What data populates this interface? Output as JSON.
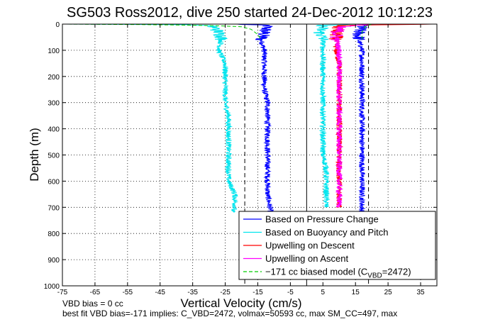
{
  "chart_data": {
    "type": "line",
    "title": "SG503 Ross2012, dive 250 started 24-Dec-2012 10:12:23",
    "xlabel": "Vertical Velocity (cm/s)",
    "ylabel": "Depth (m)",
    "xlim": [
      -75,
      40
    ],
    "ylim": [
      0,
      1000
    ],
    "y_reversed": true,
    "grid": true,
    "x_ticks": [
      "-75",
      "-65",
      "-55",
      "-45",
      "-35",
      "-25",
      "-15",
      "-5",
      "5",
      "15",
      "25",
      "35"
    ],
    "y_ticks": [
      "0",
      "100",
      "200",
      "300",
      "400",
      "500",
      "600",
      "700",
      "800",
      "900",
      "1000"
    ],
    "legend_location": "bottom-right",
    "series": [
      {
        "name": "Based on Pressure Change",
        "color": "#0000ff",
        "segments": [
          {
            "x": [
              -22,
              -12,
              -13,
              -14,
              -13,
              -13,
              -13,
              -13,
              -12,
              -12,
              -12,
              -12,
              -12,
              -12,
              -12,
              -12,
              -11
            ],
            "y": [
              0,
              5,
              30,
              60,
              100,
              150,
              200,
              250,
              300,
              350,
              400,
              450,
              500,
              550,
              600,
              650,
              720
            ]
          },
          {
            "x": [
              20,
              17,
              16,
              16,
              17,
              17,
              17,
              17,
              17,
              17,
              17,
              17,
              17,
              17,
              17,
              17,
              17,
              17
            ],
            "y": [
              0,
              5,
              30,
              60,
              100,
              150,
              200,
              250,
              300,
              350,
              400,
              450,
              500,
              550,
              600,
              650,
              700,
              720
            ]
          }
        ]
      },
      {
        "name": "Based on Buoyancy and Pitch",
        "color": "#00e5ee",
        "segments": [
          {
            "x": [
              -75,
              -40,
              -30,
              -28,
              -26,
              -27,
              -25,
              -25,
              -25,
              -25,
              -24,
              -24,
              -24,
              -24,
              -24,
              -24,
              -22,
              -22,
              -23
            ],
            "y": [
              0,
              2,
              5,
              15,
              50,
              100,
              150,
              200,
              250,
              300,
              350,
              400,
              450,
              500,
              550,
              600,
              650,
              700,
              720
            ]
          },
          {
            "x": [
              16,
              5,
              4,
              5,
              5,
              5,
              5,
              5,
              5,
              5,
              5,
              5,
              6,
              6,
              6,
              6
            ],
            "y": [
              0,
              5,
              30,
              60,
              100,
              150,
              200,
              300,
              350,
              400,
              450,
              500,
              550,
              600,
              650,
              700
            ]
          }
        ]
      },
      {
        "name": "Upwelling on Descent",
        "color": "#ff0000",
        "segments": [
          {
            "x": [
              40,
              10,
              9,
              9,
              10,
              10,
              10,
              10,
              10,
              10,
              10,
              10,
              10,
              10
            ],
            "y": [
              0,
              5,
              30,
              100,
              150,
              200,
              300,
              400,
              450,
              500,
              550,
              600,
              650,
              700
            ]
          }
        ]
      },
      {
        "name": "Upwelling on Ascent",
        "color": "#ff00ff",
        "segments": [
          {
            "x": [
              20,
              10,
              9,
              10,
              10,
              10,
              10,
              10,
              10,
              10,
              10,
              10,
              10,
              10
            ],
            "y": [
              0,
              10,
              50,
              100,
              150,
              200,
              300,
              400,
              450,
              500,
              550,
              600,
              650,
              700
            ]
          }
        ]
      },
      {
        "name": "−171 cc biased model (C_VBD=2472)",
        "legend_prefix": "−171 cc biased model (C",
        "legend_sub": "VBD",
        "legend_suffix": "=2472)",
        "color": "#00cc00",
        "dashed": true,
        "segments": [
          {
            "x": [
              -75,
              -50,
              -30,
              -20,
              -17,
              -15,
              -14
            ],
            "y": [
              0,
              2,
              5,
              10,
              20,
              40,
              60
            ]
          },
          {
            "x": [
              20,
              18,
              17,
              17
            ],
            "y": [
              0,
              10,
              30,
              60
            ]
          }
        ]
      }
    ],
    "reference_lines": [
      {
        "x": -19,
        "style": "dashed",
        "color": "#000000"
      },
      {
        "x": 0,
        "style": "solid",
        "color": "#000000"
      },
      {
        "x": 19,
        "style": "dashed",
        "color": "#000000"
      }
    ],
    "annotations": [
      "VBD bias = 0 cc",
      "best fit VBD bias=-171 implies: C_VBD=2472, volmax=50593 cc, max SM_CC=497, max"
    ]
  }
}
